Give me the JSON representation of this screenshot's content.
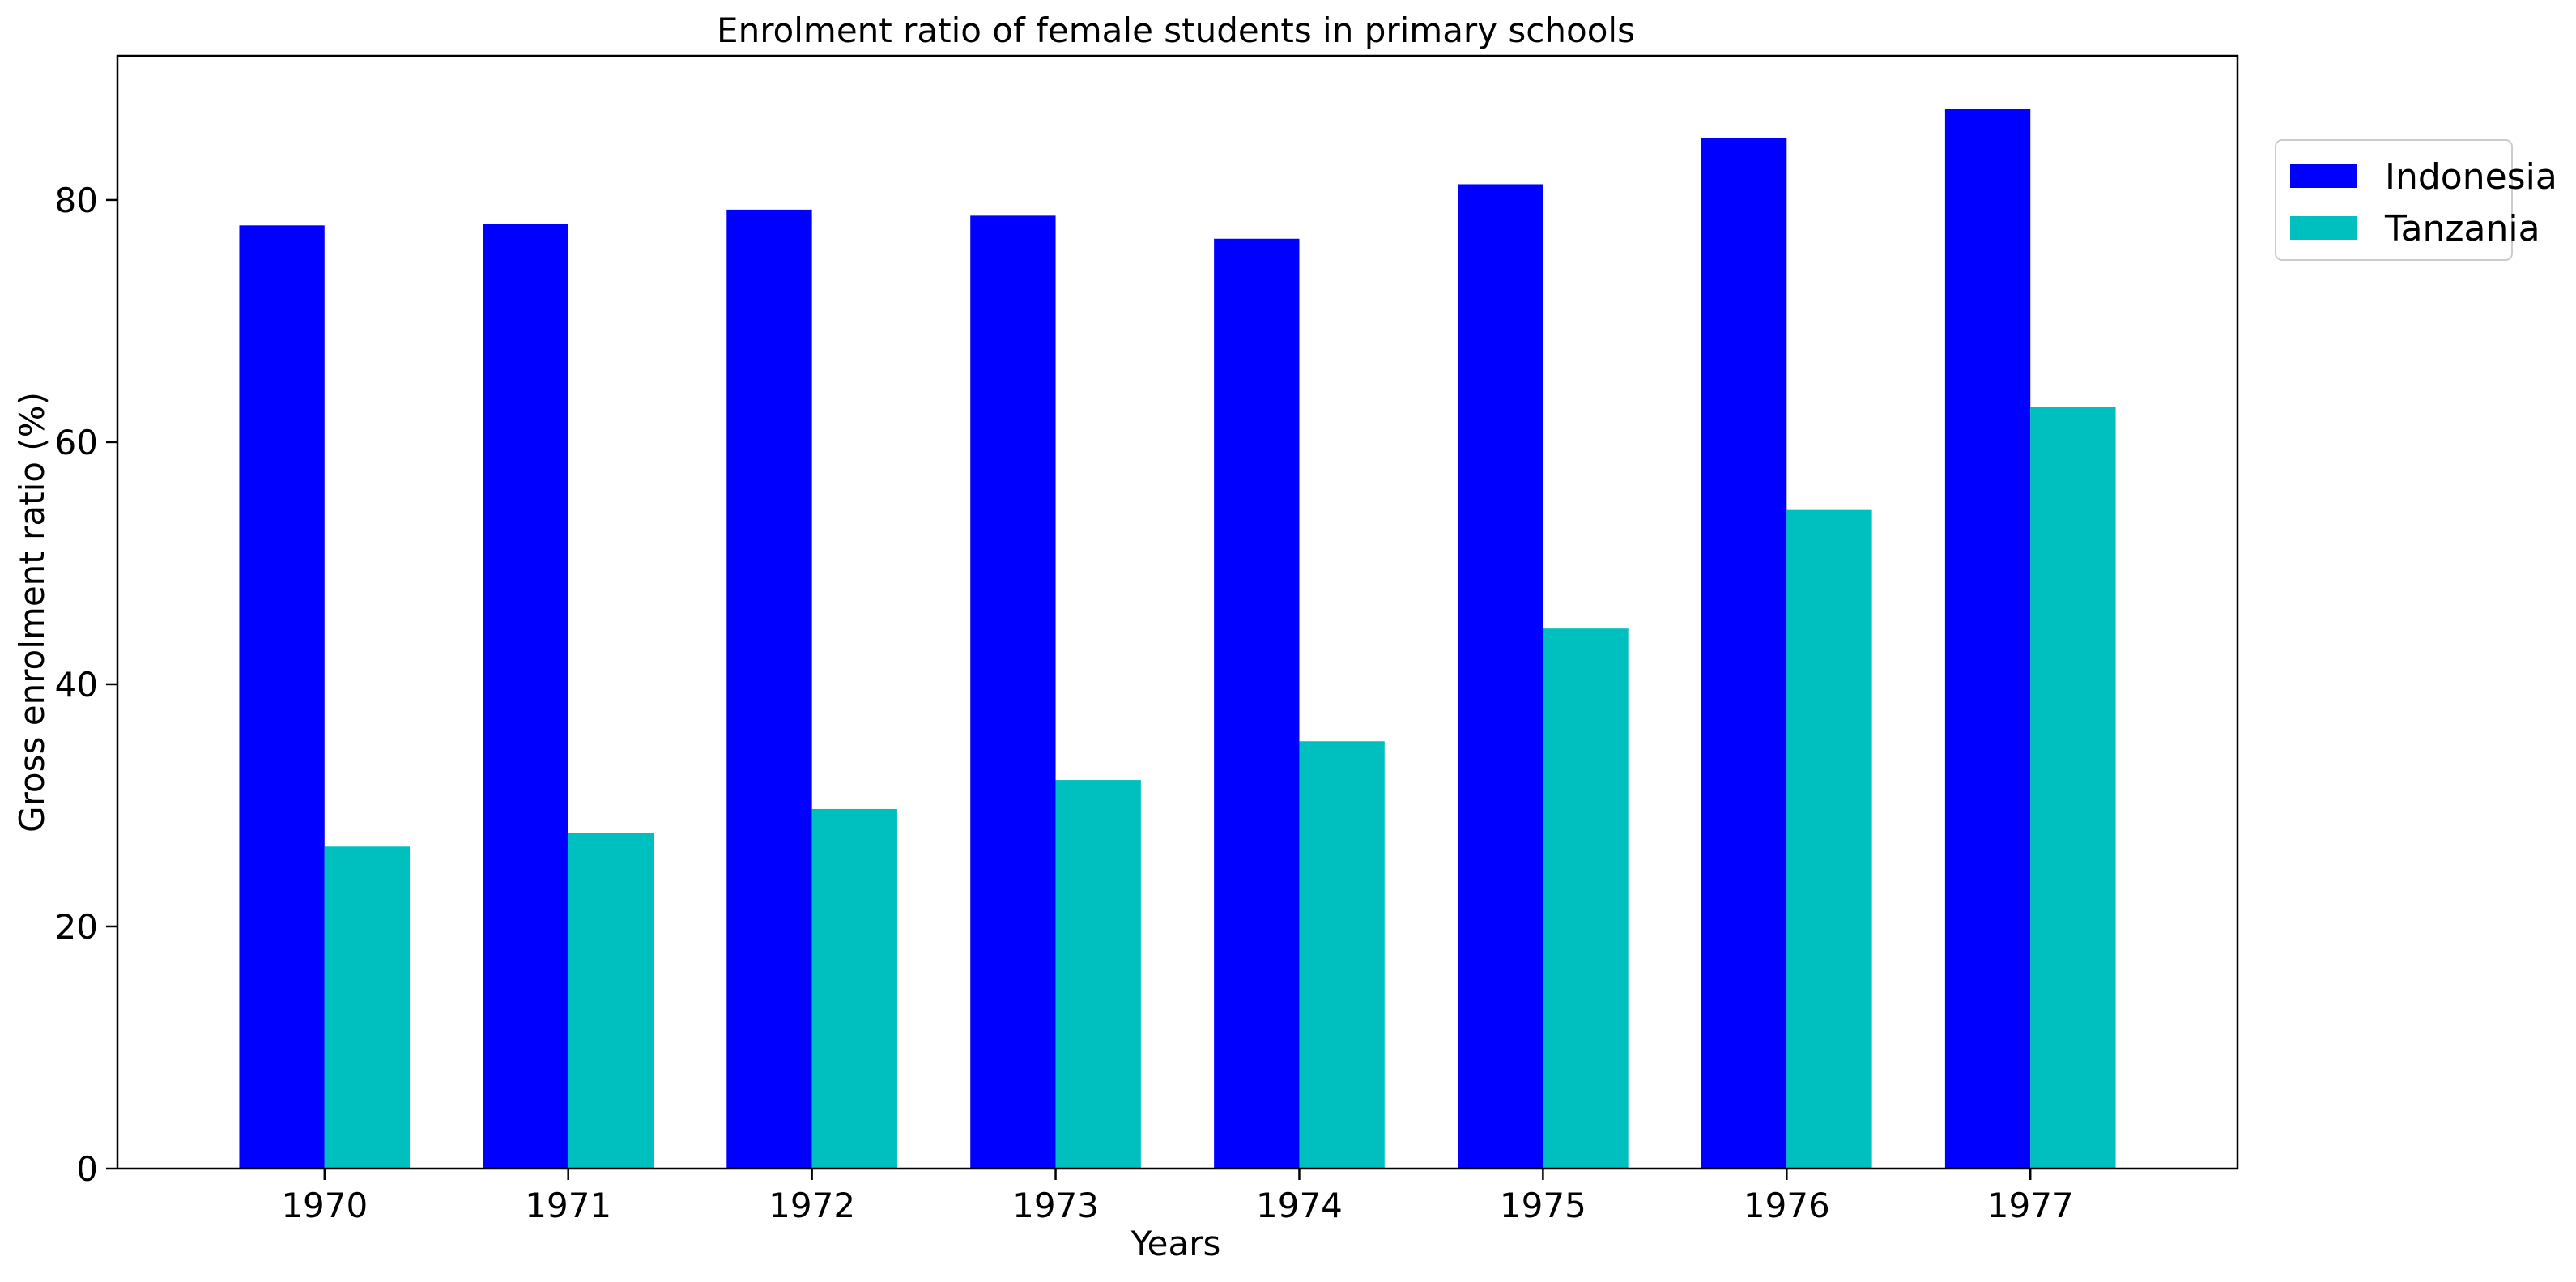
{
  "chart_data": {
    "type": "bar",
    "title": "Enrolment ratio of female students in primary schools",
    "xlabel": "Years",
    "ylabel": "Gross enrolment ratio (%)",
    "categories": [
      "1970",
      "1971",
      "1972",
      "1973",
      "1974",
      "1975",
      "1976",
      "1977"
    ],
    "series": [
      {
        "name": "Indonesia",
        "color": "#0000ff",
        "values": [
          77.9,
          78.0,
          79.2,
          78.7,
          76.8,
          81.3,
          85.1,
          87.5
        ]
      },
      {
        "name": "Tanzania",
        "color": "#00bfbf",
        "values": [
          26.6,
          27.7,
          29.7,
          32.1,
          35.3,
          44.6,
          54.4,
          62.9
        ]
      }
    ],
    "ylim": [
      0,
      91.9
    ],
    "yticks": [
      "0",
      "20",
      "40",
      "60",
      "80"
    ],
    "grid": false,
    "legend_position": "outside-top-right"
  }
}
